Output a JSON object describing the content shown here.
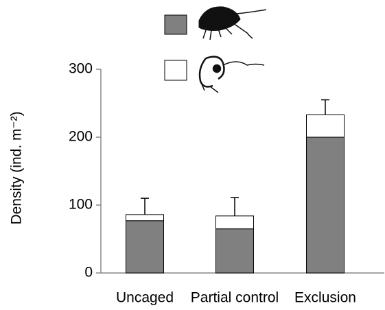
{
  "chart_data": {
    "type": "stacked_bar",
    "y_label": "Density (ind. m⁻²)",
    "categories": [
      "Uncaged",
      "Partial control",
      "Exclusion"
    ],
    "series": [
      {
        "color": "#808080",
        "values": [
          77,
          65,
          200
        ]
      },
      {
        "color": "#ffffff",
        "values": [
          9,
          19,
          33
        ],
        "errors": [
          24,
          27,
          22
        ]
      }
    ],
    "ylim": [
      0,
      300
    ],
    "yticks": [
      0,
      100,
      200,
      300
    ],
    "grid": false
  }
}
